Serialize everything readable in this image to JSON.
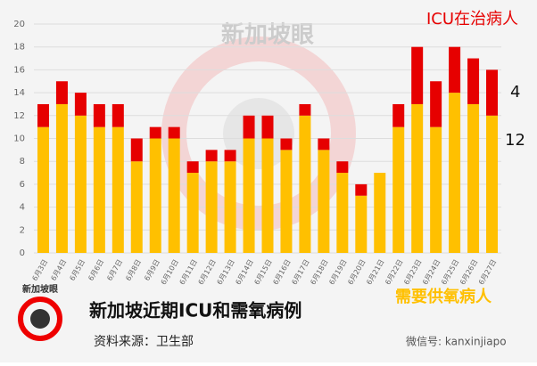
{
  "chart_data": {
    "type": "stacked_bar",
    "title": "新加坡近期ICU和需氧病例",
    "source": "资料来源：卫生部",
    "watermark": "新加坡眼",
    "wechat": "微信号: kanxinjiapo",
    "categories": [
      "6月3日",
      "6月4日",
      "6月5日",
      "6月6日",
      "6月7日",
      "6月8日",
      "6月9日",
      "6月10日",
      "6月11日",
      "6月12日",
      "6月13日",
      "6月14日",
      "6月15日",
      "6月16日",
      "6月17日",
      "6月18日",
      "6月19日",
      "6月20日",
      "6月21日",
      "6月22日",
      "6月23日",
      "6月24日",
      "6月25日",
      "6月26日",
      "6月27日"
    ],
    "series": [
      {
        "name": "需要供氧病人",
        "color": "#ffc000",
        "values": [
          11,
          13,
          12,
          11,
          11,
          8,
          10,
          10,
          7,
          8,
          8,
          10,
          10,
          9,
          12,
          9,
          7,
          5,
          7,
          11,
          13,
          11,
          14,
          13,
          12
        ]
      },
      {
        "name": "ICU在治病人",
        "color": "#e60000",
        "values": [
          2,
          2,
          2,
          2,
          2,
          2,
          1,
          1,
          1,
          1,
          1,
          2,
          2,
          1,
          1,
          1,
          1,
          1,
          0,
          2,
          5,
          4,
          4,
          4,
          4
        ]
      }
    ],
    "ylim": [
      0,
      20
    ],
    "yticks": [
      0,
      2,
      4,
      6,
      8,
      10,
      12,
      14,
      16,
      18,
      20
    ],
    "grid": true
  }
}
